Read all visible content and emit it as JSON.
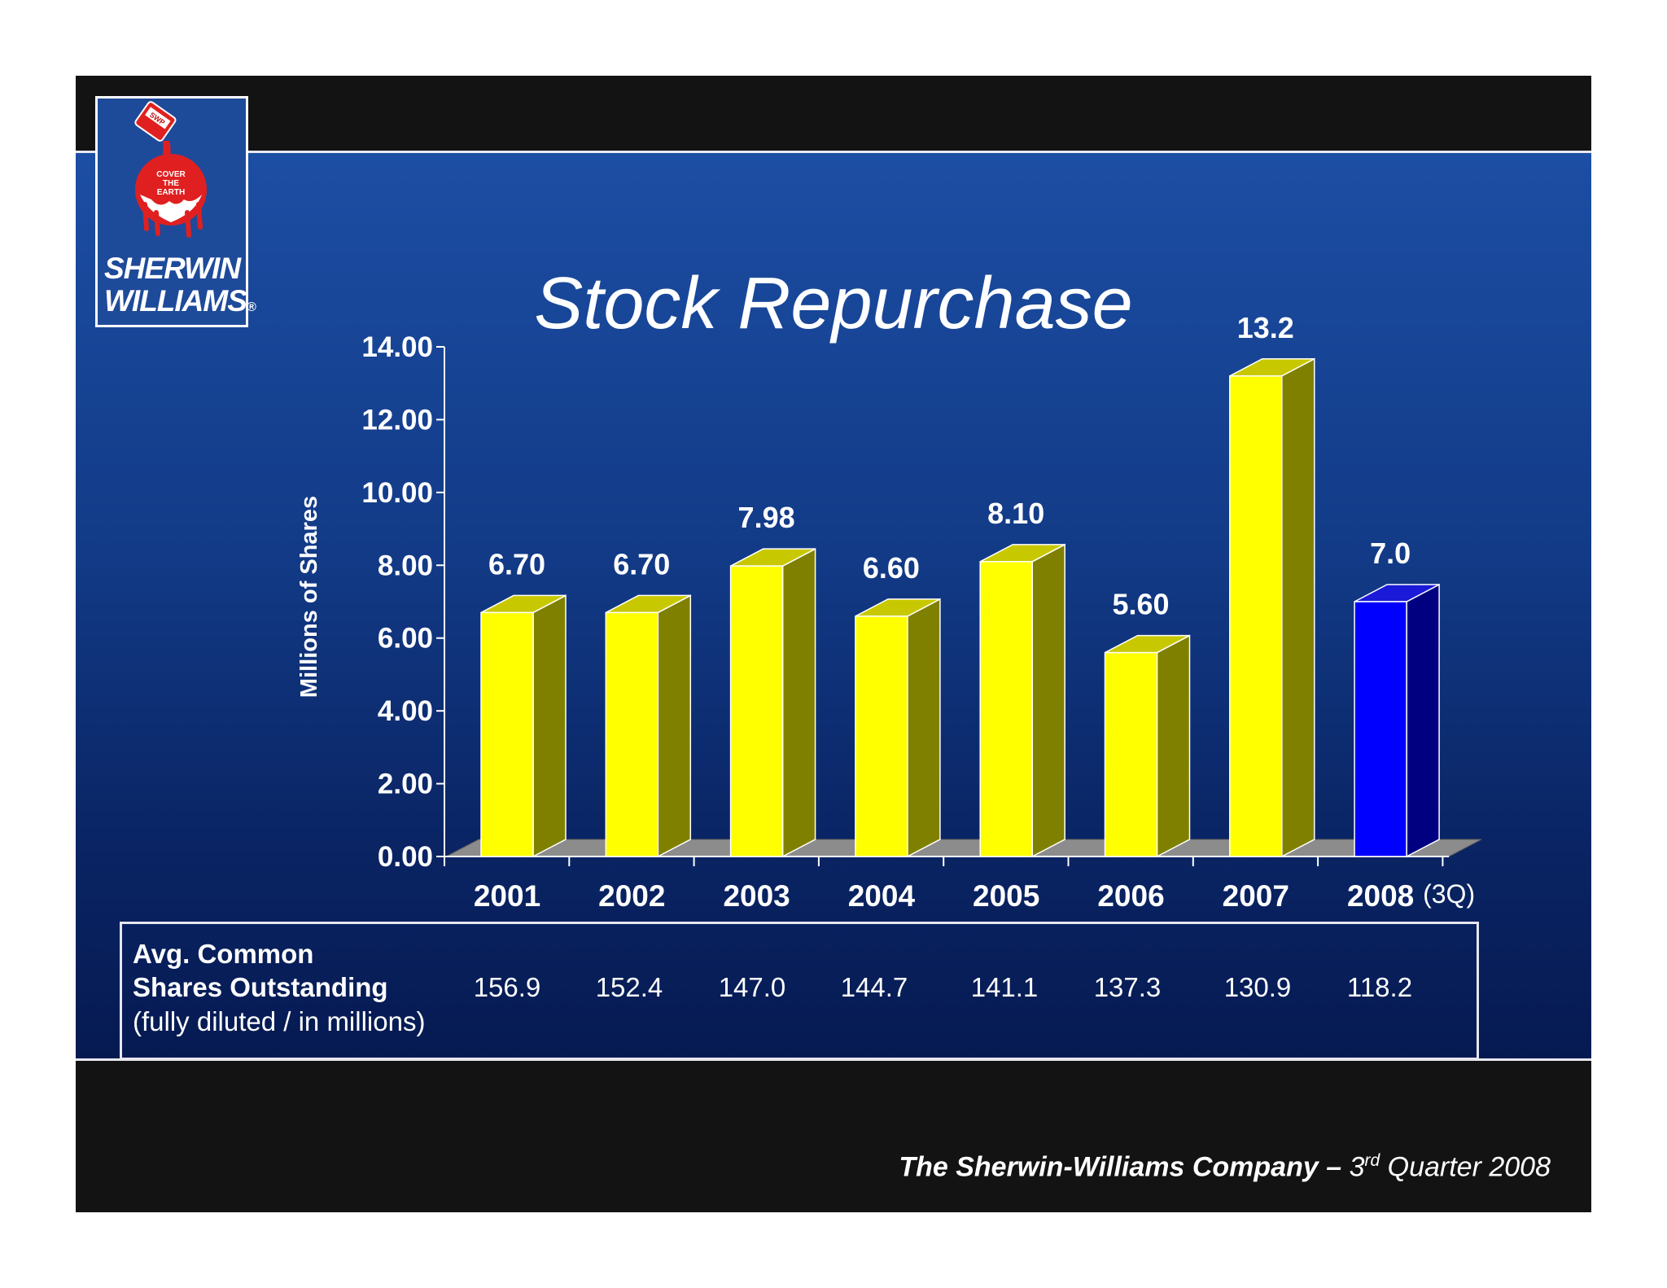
{
  "slide": {
    "title": "Stock Repurchase",
    "logo": {
      "line1": "SHERWIN",
      "line2": "WILLIAMS",
      "registered": "®",
      "slogan": [
        "COVER",
        "THE",
        "EARTH"
      ],
      "can_text": "SWP"
    },
    "footer": {
      "company": "The Sherwin-Williams Company –",
      "ordinal_num": "3",
      "ordinal_suffix": "rd",
      "period": "Quarter 2008"
    }
  },
  "chart_data": {
    "type": "bar",
    "title": "Stock Repurchase",
    "ylabel": "Millions of Shares",
    "xlabel": "",
    "ylim": [
      0,
      14
    ],
    "yticks": [
      "0.00",
      "2.00",
      "4.00",
      "6.00",
      "8.00",
      "10.00",
      "12.00",
      "14.00"
    ],
    "categories": [
      "2001",
      "2002",
      "2003",
      "2004",
      "2005",
      "2006",
      "2007",
      "2008"
    ],
    "category_note": "(3Q)",
    "values": [
      6.7,
      6.7,
      7.98,
      6.6,
      8.1,
      5.6,
      13.2,
      7.0
    ],
    "value_labels": [
      "6.70",
      "6.70",
      "7.98",
      "6.60",
      "8.10",
      "5.60",
      "13.2",
      "7.0"
    ],
    "colors": {
      "bar_front": "#ffff00",
      "bar_side": "#808000",
      "bar_top": "#c8c800",
      "highlight_front": "#0000ff",
      "highlight_side": "#000080",
      "highlight_top": "#1a1ad8",
      "floor": "#8c8c8c"
    },
    "highlight_index": 7,
    "grid": false,
    "legend": "none",
    "table": {
      "label_line1": "Avg. Common",
      "label_line2": "Shares Outstanding",
      "label_line3": "(fully diluted / in millions)",
      "values": [
        "156.9",
        "152.4",
        "147.0",
        "144.7",
        "141.1",
        "137.3",
        "130.9",
        "118.2"
      ]
    }
  }
}
